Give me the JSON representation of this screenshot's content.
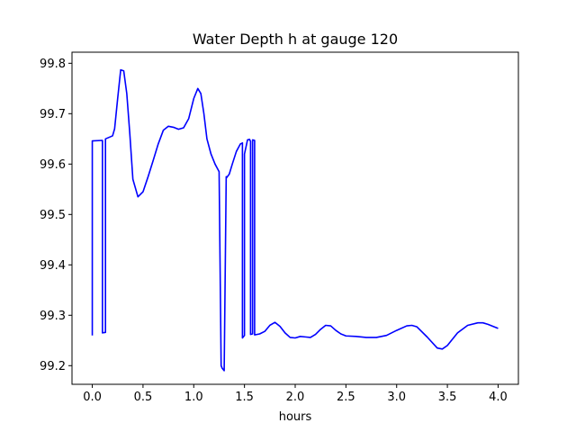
{
  "chart_data": {
    "type": "line",
    "title": "Water Depth h at gauge 120",
    "xlabel": "hours",
    "ylabel": "",
    "xlim": [
      -0.2,
      4.2
    ],
    "ylim": [
      99.163,
      99.822
    ],
    "xticks": [
      0.0,
      0.5,
      1.0,
      1.5,
      2.0,
      2.5,
      3.0,
      3.5,
      4.0
    ],
    "xtick_labels": [
      "0.0",
      "0.5",
      "1.0",
      "1.5",
      "2.0",
      "2.5",
      "3.0",
      "3.5",
      "4.0"
    ],
    "yticks": [
      99.2,
      99.3,
      99.4,
      99.5,
      99.6,
      99.7,
      99.8
    ],
    "ytick_labels": [
      "99.2",
      "99.3",
      "99.4",
      "99.5",
      "99.6",
      "99.7",
      "99.8"
    ],
    "grid": false,
    "series": [
      {
        "color": "#0000ff",
        "x": [
          0.0,
          0.0,
          0.1,
          0.1,
          0.13,
          0.13,
          0.2,
          0.22,
          0.25,
          0.28,
          0.31,
          0.34,
          0.37,
          0.4,
          0.45,
          0.5,
          0.55,
          0.6,
          0.65,
          0.7,
          0.75,
          0.8,
          0.85,
          0.9,
          0.95,
          1.0,
          1.04,
          1.07,
          1.1,
          1.13,
          1.17,
          1.21,
          1.25,
          1.27,
          1.28,
          1.3,
          1.32,
          1.32,
          1.35,
          1.38,
          1.42,
          1.46,
          1.48,
          1.48,
          1.5,
          1.5,
          1.53,
          1.55,
          1.56,
          1.56,
          1.58,
          1.58,
          1.6,
          1.6,
          1.65,
          1.7,
          1.75,
          1.8,
          1.85,
          1.9,
          1.95,
          2.0,
          2.05,
          2.1,
          2.15,
          2.2,
          2.25,
          2.3,
          2.35,
          2.4,
          2.45,
          2.5,
          2.6,
          2.7,
          2.8,
          2.9,
          3.0,
          3.1,
          3.15,
          3.2,
          3.3,
          3.4,
          3.45,
          3.5,
          3.6,
          3.7,
          3.8,
          3.85,
          3.9,
          4.0
        ],
        "y": [
          99.26,
          99.646,
          99.647,
          99.265,
          99.266,
          99.65,
          99.656,
          99.67,
          99.73,
          99.787,
          99.785,
          99.74,
          99.66,
          99.57,
          99.535,
          99.545,
          99.575,
          99.607,
          99.64,
          99.667,
          99.675,
          99.673,
          99.669,
          99.672,
          99.69,
          99.73,
          99.75,
          99.74,
          99.7,
          99.65,
          99.62,
          99.6,
          99.585,
          99.2,
          99.195,
          99.19,
          99.575,
          99.572,
          99.58,
          99.6,
          99.625,
          99.64,
          99.642,
          99.255,
          99.26,
          99.62,
          99.648,
          99.649,
          99.645,
          99.262,
          99.263,
          99.648,
          99.647,
          99.261,
          99.263,
          99.268,
          99.28,
          99.286,
          99.278,
          99.265,
          99.256,
          99.255,
          99.258,
          99.257,
          99.256,
          99.262,
          99.272,
          99.28,
          99.279,
          99.27,
          99.263,
          99.259,
          99.258,
          99.256,
          99.256,
          99.26,
          99.27,
          99.279,
          99.28,
          99.277,
          99.257,
          99.235,
          99.233,
          99.24,
          99.265,
          99.28,
          99.285,
          99.285,
          99.282,
          99.274
        ]
      }
    ]
  }
}
